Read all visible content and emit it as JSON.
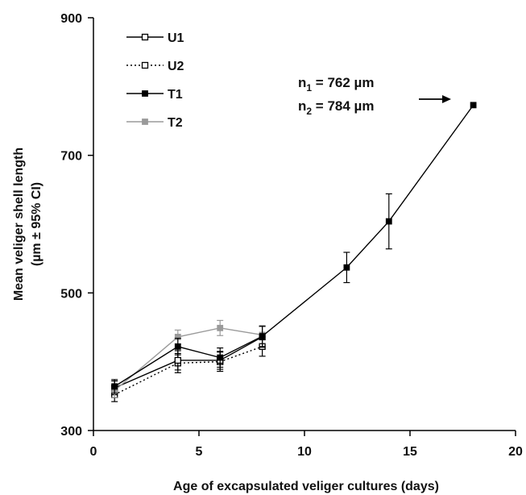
{
  "chart_data": {
    "type": "line",
    "title": "",
    "xlabel": "Age of excapsulated veliger cultures (days)",
    "ylabel_line1": "Mean veliger shell length",
    "ylabel_line2": "(µm ± 95% CI)",
    "xlim": [
      0,
      20
    ],
    "ylim": [
      300,
      900
    ],
    "x_ticks": [
      0,
      5,
      10,
      15,
      20
    ],
    "y_ticks": [
      300,
      500,
      700,
      900
    ],
    "grid": false,
    "legend_position": "top-left",
    "series": [
      {
        "name": "U1",
        "marker": "open-square",
        "line": "solid",
        "color": "#000000",
        "points": [
          {
            "x": 1,
            "y": 362,
            "ci": 10
          },
          {
            "x": 4,
            "y": 402,
            "ci": 14
          },
          {
            "x": 6,
            "y": 402,
            "ci": 13
          },
          {
            "x": 8,
            "y": 436,
            "ci": 15
          }
        ]
      },
      {
        "name": "U2",
        "marker": "open-square",
        "line": "dotted",
        "color": "#000000",
        "points": [
          {
            "x": 1,
            "y": 352,
            "ci": 10
          },
          {
            "x": 4,
            "y": 398,
            "ci": 14
          },
          {
            "x": 6,
            "y": 400,
            "ci": 14
          },
          {
            "x": 8,
            "y": 422,
            "ci": 14
          }
        ]
      },
      {
        "name": "T1",
        "marker": "filled-square",
        "line": "solid",
        "color": "#000000",
        "points": [
          {
            "x": 1,
            "y": 364,
            "ci": 10
          },
          {
            "x": 4,
            "y": 422,
            "ci": 12
          },
          {
            "x": 6,
            "y": 406,
            "ci": 14
          },
          {
            "x": 8,
            "y": 437,
            "ci": 15
          },
          {
            "x": 12,
            "y": 537,
            "ci": 22
          },
          {
            "x": 14,
            "y": 604,
            "ci": 40
          },
          {
            "x": 18,
            "y": 773,
            "ci": 0
          }
        ]
      },
      {
        "name": "T2",
        "marker": "filled-square",
        "line": "solid",
        "color": "#9a9a9a",
        "points": [
          {
            "x": 1,
            "y": 358,
            "ci": 10
          },
          {
            "x": 4,
            "y": 436,
            "ci": 10
          },
          {
            "x": 6,
            "y": 449,
            "ci": 11
          },
          {
            "x": 8,
            "y": 439,
            "ci": 12
          }
        ]
      }
    ],
    "annotations": [
      {
        "base": "n",
        "sub": "1",
        "rest": " = 762 µm"
      },
      {
        "base": "n",
        "sub": "2",
        "rest": " = 784 µm"
      }
    ]
  }
}
